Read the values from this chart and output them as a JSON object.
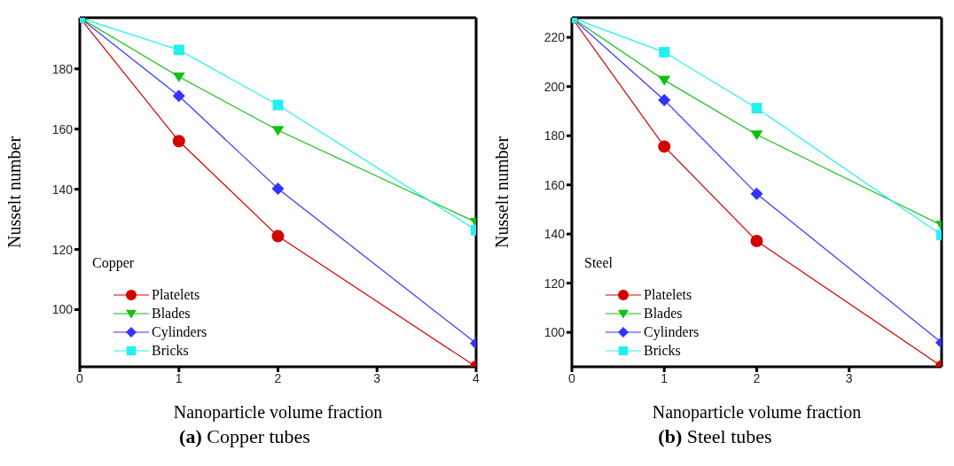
{
  "chart_data": [
    {
      "type": "line",
      "xlabel": "Nanoparticle volume fraction",
      "ylabel": "Nusselt number",
      "legend_title": "Copper",
      "legend": "bottom left",
      "annotations": [
        "(a) Copper tubes"
      ],
      "x": [
        0,
        1,
        2,
        4
      ],
      "xlim": [
        0,
        4
      ],
      "xticks": [
        0,
        1,
        2,
        3,
        4
      ],
      "ylim": [
        81,
        197
      ],
      "yticks": [
        100,
        120,
        140,
        160,
        180
      ],
      "series": [
        {
          "name": "Platelets",
          "color": "#d40000",
          "marker": "circle",
          "values": [
            197,
            156,
            124.4,
            81
          ]
        },
        {
          "name": "Blades",
          "color": "#11c011",
          "marker": "triangle",
          "values": [
            197,
            177.4,
            159.6,
            129
          ]
        },
        {
          "name": "Cylinders",
          "color": "#3333ff",
          "marker": "diamond",
          "values": [
            197,
            171,
            140.2,
            88.8
          ]
        },
        {
          "name": "Bricks",
          "color": "#22f0f0",
          "marker": "square",
          "values": [
            197,
            186.3,
            168,
            126.4
          ]
        }
      ]
    },
    {
      "type": "line",
      "xlabel": "Nanoparticle volume fraction",
      "ylabel": "Nusselt number",
      "legend_title": "Steel",
      "legend": "bottom left",
      "annotations": [
        "(b) Steel tubes"
      ],
      "x": [
        0,
        1,
        2,
        4
      ],
      "xlim": [
        0,
        4
      ],
      "xticks": [
        0,
        1,
        2,
        3
      ],
      "ylim": [
        86,
        228
      ],
      "yticks": [
        100,
        120,
        140,
        160,
        180,
        200,
        220
      ],
      "series": [
        {
          "name": "Platelets",
          "color": "#d40000",
          "marker": "circle",
          "values": [
            228,
            175.6,
            137.2,
            86.2
          ]
        },
        {
          "name": "Blades",
          "color": "#11c011",
          "marker": "triangle",
          "values": [
            228,
            202.6,
            180.4,
            143.6
          ]
        },
        {
          "name": "Cylinders",
          "color": "#3333ff",
          "marker": "diamond",
          "values": [
            228,
            194.5,
            156.4,
            95.8
          ]
        },
        {
          "name": "Bricks",
          "color": "#22f0f0",
          "marker": "square",
          "values": [
            228,
            214,
            191.2,
            139.6
          ]
        }
      ]
    }
  ]
}
